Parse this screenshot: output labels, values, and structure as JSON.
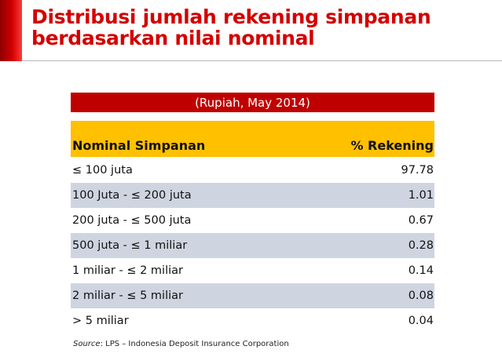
{
  "title": {
    "line1": "Distribusi jumlah rekening simpanan",
    "line2": "berdasarkan nilai nominal"
  },
  "table": {
    "caption": "(Rupiah, May 2014)",
    "headers": {
      "nominal": "Nominal Simpanan",
      "percent": "% Rekening"
    },
    "rows": [
      {
        "nominal": "≤ 100 juta",
        "percent": "97.78"
      },
      {
        "nominal": "100 Juta -  ≤ 200 juta",
        "percent": "1.01"
      },
      {
        "nominal": "200 juta - ≤ 500 juta",
        "percent": "0.67"
      },
      {
        "nominal": "500 juta - ≤ 1 miliar",
        "percent": "0.28"
      },
      {
        "nominal": "1 miliar - ≤ 2 miliar",
        "percent": "0.14"
      },
      {
        "nominal": "2 miliar - ≤ 5 miliar",
        "percent": "0.08"
      },
      {
        "nominal": "> 5 miliar",
        "percent": "0.04"
      }
    ]
  },
  "source": {
    "label": "Source",
    "text": ": LPS – Indonesia Deposit Insurance Corporation"
  },
  "colors": {
    "title": "#d40000",
    "caption_band": "#c00000",
    "header_band": "#ffc000",
    "alt_row": "#cfd5e0"
  }
}
